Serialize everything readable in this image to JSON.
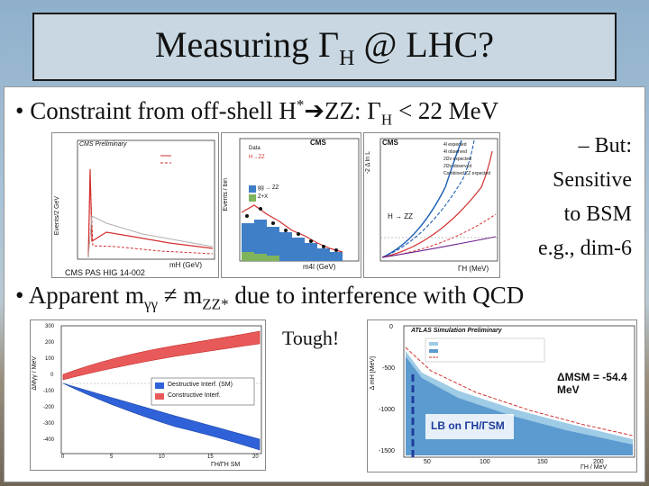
{
  "slide": {
    "title_main": "Measuring Γ",
    "title_sub": "H",
    "title_tail": " @ LHC?",
    "bullet1": {
      "lead": "• Constraint from off-shell H",
      "sup": "*",
      "arrow": "➔",
      "mid": "ZZ: Γ",
      "sub": "H",
      "tail": " < 22 MeV"
    },
    "side_notes": [
      "– But:",
      "Sensitive",
      "to BSM",
      "e.g., dim-6"
    ],
    "bullet2": {
      "lead": "• Apparent m",
      "sub1": "γγ",
      "mid": " ≠ m",
      "sub2": "ZZ*",
      "tail": " due to interference with QCD"
    },
    "tough": "Tough!"
  },
  "plots": {
    "p1": {
      "label": "CMS Preliminary",
      "ylabel": "Events/2 GeV",
      "xlabel": "mH (GeV)",
      "caption": "CMS PAS HIG 14-002"
    },
    "p2": {
      "label": "CMS",
      "ylabel": "Events / bin",
      "xlabel": "m4l (GeV)",
      "legend": [
        "Data",
        "H→ZZ",
        "gg → ZZ",
        "Z+X"
      ]
    },
    "p3": {
      "label": "CMS",
      "ylabel": "-2 Δ ln L",
      "xlabel": "ΓH (MeV)",
      "region": "H → ZZ",
      "legend": [
        "4l expected",
        "4l observed",
        "2l2ν expected",
        "2l2ν observed",
        "Combined ZZ expected"
      ]
    },
    "p4": {
      "ylabel": "ΔMγγ / MeV",
      "xlabel": "ΓH/ΓH SM",
      "legend": [
        "Destructive Interf. (SM)",
        "Constructive Interf."
      ],
      "yticks": [
        "300",
        "200",
        "100",
        "0",
        "-100",
        "-200",
        "-300",
        "-400"
      ],
      "xticks": [
        "0",
        "5",
        "10",
        "15",
        "20"
      ]
    },
    "p5": {
      "label": "ATLAS Simulation Preliminary",
      "ylabel": "Δ mH [MeV]",
      "xlabel": "ΓH / MeV",
      "annotation": "ΔMSM = -54.4 MeV",
      "box_text": "LB on ΓH/ΓSM",
      "yticks": [
        "0",
        "-500",
        "-1000",
        "-1500"
      ],
      "xticks": [
        "50",
        "100",
        "150",
        "200"
      ]
    }
  },
  "colors": {
    "accent_blue": "#1e5fb4",
    "accent_red": "#d23030",
    "fill_blue": "#3f7fc8"
  }
}
